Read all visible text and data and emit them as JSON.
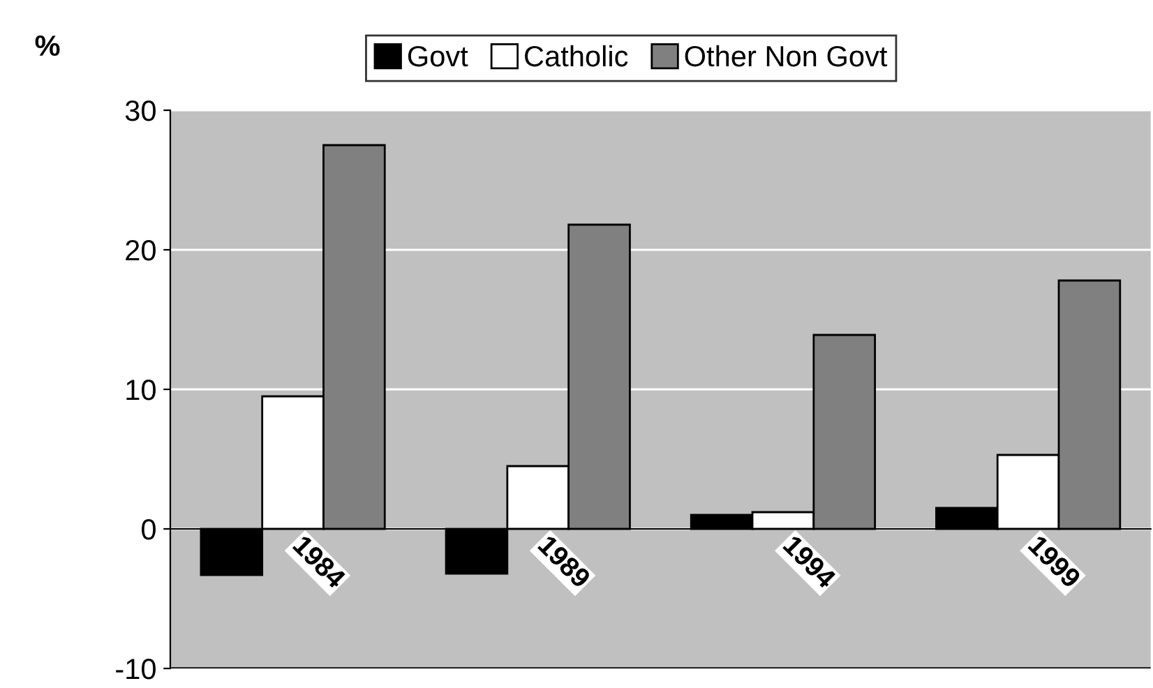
{
  "chart_data": {
    "type": "bar",
    "ylabel": "%",
    "categories": [
      "1984",
      "1989",
      "1994",
      "1999"
    ],
    "series": [
      {
        "name": "Govt",
        "color": "#000000",
        "values": [
          -3.3,
          -3.2,
          1.0,
          1.5
        ]
      },
      {
        "name": "Catholic",
        "color": "#ffffff",
        "values": [
          9.5,
          4.5,
          1.2,
          5.3
        ]
      },
      {
        "name": "Other Non Govt",
        "color": "#808080",
        "values": [
          27.5,
          21.8,
          13.9,
          17.8
        ]
      }
    ],
    "ylim": [
      -10,
      30
    ],
    "yticks": [
      -10,
      0,
      10,
      20,
      30
    ],
    "grid": "y",
    "legend": "top"
  }
}
